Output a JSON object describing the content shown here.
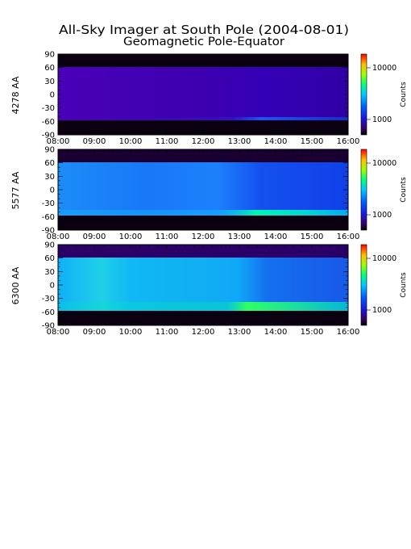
{
  "title_line1": "All-Sky Imager at South Pole (2004-08-01)",
  "title_line2": "Geomagnetic Pole-Equator",
  "chart_data": [
    {
      "type": "heatmap",
      "ylabel": "4278 AA",
      "colorbar_label": "Counts",
      "colorbar_ticks": [
        "10000",
        "1000"
      ],
      "colorbar_values": [
        10000,
        1000
      ],
      "x_ticks": [
        "08:00",
        "09:00",
        "10:00",
        "11:00",
        "12:00",
        "13:00",
        "14:00",
        "15:00",
        "16:00"
      ],
      "y_ticks": [
        "90",
        "60",
        "30",
        "0",
        "-30",
        "-60",
        "-90"
      ],
      "ylim": [
        -90,
        90
      ],
      "data_latitude_range": [
        -55,
        63
      ],
      "colors": {
        "background": "#3a00ae",
        "data_gap": "#0a0010"
      }
    },
    {
      "type": "heatmap",
      "ylabel": "5577 AA",
      "colorbar_label": "Counts",
      "colorbar_ticks": [
        "10000",
        "1000"
      ],
      "colorbar_values": [
        10000,
        1000
      ],
      "x_ticks": [
        "08:00",
        "09:00",
        "10:00",
        "11:00",
        "12:00",
        "13:00",
        "14:00",
        "15:00",
        "16:00"
      ],
      "y_ticks": [
        "90",
        "60",
        "30",
        "0",
        "-30",
        "-60",
        "-90"
      ],
      "ylim": [
        -90,
        90
      ],
      "data_latitude_range": [
        -55,
        63
      ],
      "colors": {
        "background": "#1a6cf0",
        "data_gap": "#0a0010"
      }
    },
    {
      "type": "heatmap",
      "ylabel": "6300 AA",
      "colorbar_label": "Counts",
      "colorbar_ticks": [
        "10000",
        "1000"
      ],
      "colorbar_values": [
        10000,
        1000
      ],
      "x_ticks": [
        "08:00",
        "09:00",
        "10:00",
        "11:00",
        "12:00",
        "13:00",
        "14:00",
        "15:00",
        "16:00"
      ],
      "y_ticks": [
        "90",
        "60",
        "30",
        "0",
        "-30",
        "-60",
        "-90"
      ],
      "ylim": [
        -90,
        90
      ],
      "data_latitude_range": [
        -55,
        63
      ],
      "colors": {
        "background": "#10a0f0",
        "data_gap": "#0a0010"
      }
    }
  ]
}
